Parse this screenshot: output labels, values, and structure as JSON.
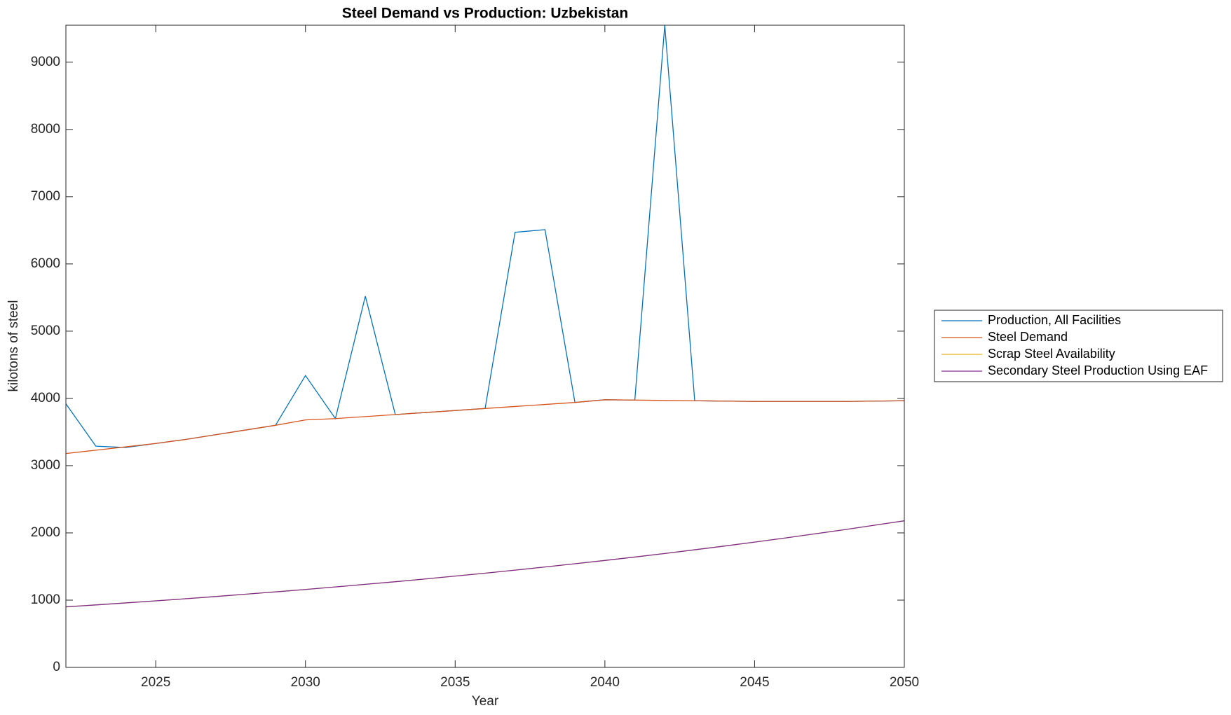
{
  "chart_data": {
    "type": "line",
    "title": "Steel Demand vs Production: Uzbekistan",
    "x_label": "Year",
    "y_label": "kilotons of steel",
    "x": [
      2022,
      2023,
      2024,
      2025,
      2026,
      2027,
      2028,
      2029,
      2030,
      2031,
      2032,
      2033,
      2034,
      2035,
      2036,
      2037,
      2038,
      2039,
      2040,
      2041,
      2042,
      2043,
      2044,
      2045,
      2046,
      2047,
      2048,
      2049,
      2050
    ],
    "series": [
      {
        "name": "Production, All Facilities",
        "color": "#0072BD",
        "values": [
          3920,
          3290,
          3270,
          3330,
          3390,
          3460,
          3530,
          3600,
          4340,
          3700,
          5520,
          3760,
          3790,
          3820,
          3850,
          6470,
          6510,
          3940,
          3980,
          3975,
          9550,
          3965,
          3960,
          3955,
          3955,
          3955,
          3955,
          3960,
          3965
        ]
      },
      {
        "name": "Steel Demand",
        "color": "#D95319",
        "values": [
          3180,
          3230,
          3280,
          3330,
          3390,
          3460,
          3530,
          3600,
          3680,
          3700,
          3730,
          3760,
          3790,
          3820,
          3850,
          3880,
          3910,
          3940,
          3980,
          3975,
          3970,
          3965,
          3960,
          3955,
          3955,
          3955,
          3955,
          3960,
          3965
        ]
      },
      {
        "name": "Scrap Steel Availability",
        "color": "#EDB120",
        "values": [
          900,
          929,
          959,
          989,
          1021,
          1054,
          1088,
          1123,
          1159,
          1196,
          1235,
          1274,
          1315,
          1358,
          1401,
          1446,
          1493,
          1541,
          1590,
          1641,
          1694,
          1749,
          1805,
          1863,
          1923,
          1985,
          2048,
          2114,
          2180
        ]
      },
      {
        "name": "Secondary Steel Production Using EAF",
        "color": "#7E2F8E",
        "values": [
          900,
          929,
          959,
          989,
          1021,
          1054,
          1088,
          1123,
          1159,
          1196,
          1235,
          1274,
          1315,
          1358,
          1401,
          1446,
          1493,
          1541,
          1590,
          1641,
          1694,
          1749,
          1805,
          1863,
          1923,
          1985,
          2048,
          2114,
          2180
        ]
      }
    ],
    "xlim": [
      2022,
      2050
    ],
    "xticks": [
      2025,
      2030,
      2035,
      2040,
      2045,
      2050
    ],
    "ylim": [
      0,
      9550
    ],
    "yticks": [
      0,
      1000,
      2000,
      3000,
      4000,
      5000,
      6000,
      7000,
      8000,
      9000
    ],
    "grid": false,
    "legend": "outside right"
  }
}
